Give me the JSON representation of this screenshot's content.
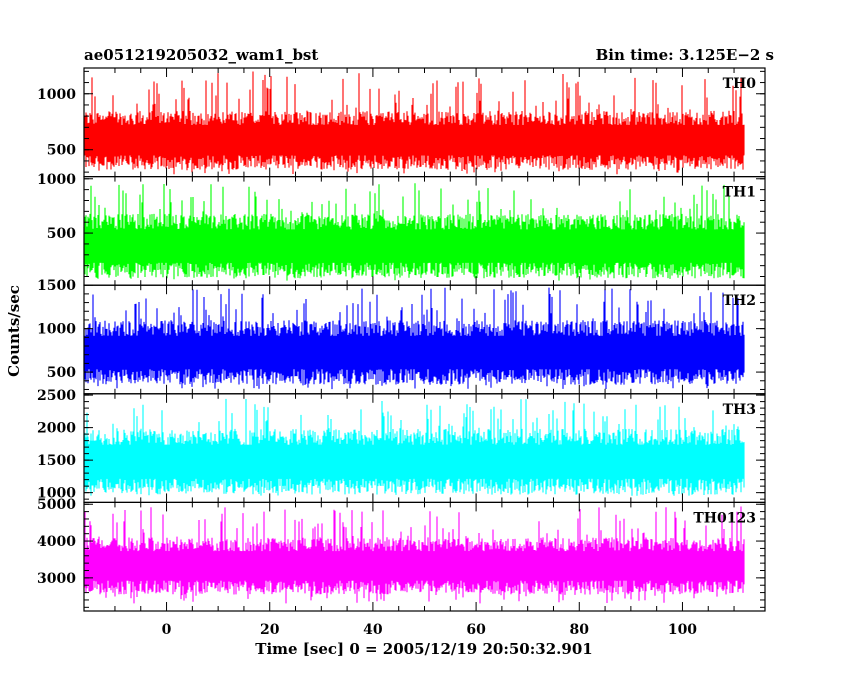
{
  "header": {
    "title_left": "ae051219205032_wam1_bst",
    "title_right": "Bin time: 3.125E−2 s"
  },
  "chart_data": {
    "type": "line",
    "title": "ae051219205032_wam1_bst",
    "bin_time_label": "Bin time: 3.125E−2 s",
    "xlabel": "Time [sec] 0 = 2005/12/19 20:50:32.901",
    "ylabel": "Counts/sec",
    "xlim": [
      -16,
      116
    ],
    "x_ticks": [
      0,
      20,
      40,
      60,
      80,
      100
    ],
    "x_data_range": [
      -16,
      112
    ],
    "grid": false,
    "panels": [
      {
        "name": "TH0",
        "color": "#ff0000",
        "ylim": [
          260,
          1230
        ],
        "y_ticks": [
          500,
          1000
        ],
        "y_tick_labels": [
          "500",
          "1000"
        ],
        "band": [
          390,
          780
        ],
        "spike_max": 1200,
        "dip_min": 280
      },
      {
        "name": "TH1",
        "color": "#00ff00",
        "ylim": [
          20,
          1020
        ],
        "y_ticks": [
          500,
          1000
        ],
        "y_tick_labels": [
          "500",
          "1000"
        ],
        "band": [
          160,
          600
        ],
        "spike_max": 960,
        "dip_min": 60
      },
      {
        "name": "TH2",
        "color": "#0000ff",
        "ylim": [
          250,
          1500
        ],
        "y_ticks": [
          500,
          1000,
          1500
        ],
        "y_tick_labels": [
          "500",
          "1000",
          "1500"
        ],
        "band": [
          450,
          1000
        ],
        "spike_max": 1480,
        "dip_min": 300
      },
      {
        "name": "TH3",
        "color": "#00ffff",
        "ylim": [
          850,
          2520
        ],
        "y_ticks": [
          1000,
          1500,
          2000,
          2500
        ],
        "y_tick_labels": [
          "1000",
          "1500",
          "2000",
          "2500"
        ],
        "band": [
          1100,
          1850
        ],
        "spike_max": 2450,
        "dip_min": 950
      },
      {
        "name": "TH0123",
        "color": "#ff00ff",
        "ylim": [
          2100,
          5050
        ],
        "y_ticks": [
          3000,
          4000,
          5000
        ],
        "y_tick_labels": [
          "3000",
          "4000",
          "5000"
        ],
        "band": [
          2750,
          3900
        ],
        "spike_max": 4950,
        "dip_min": 2300
      }
    ]
  }
}
